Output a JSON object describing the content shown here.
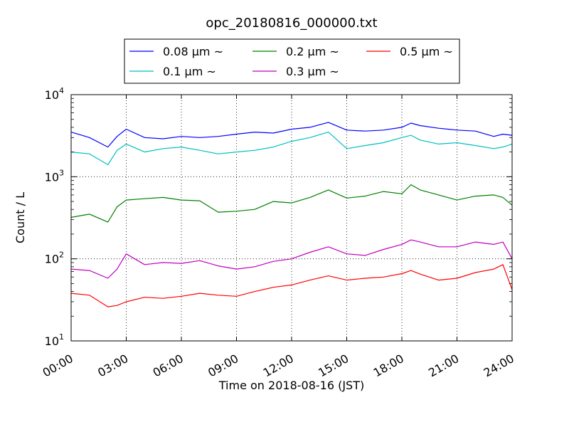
{
  "chart_data": {
    "type": "line",
    "title": "opc_20180816_000000.txt",
    "xlabel": "Time on 2018-08-16 (JST)",
    "ylabel": "Count / L",
    "y_scale": "log",
    "ylim": [
      10,
      10000
    ],
    "xlim": [
      "00:00",
      "24:00"
    ],
    "x_ticks": [
      "00:00",
      "03:00",
      "06:00",
      "09:00",
      "12:00",
      "15:00",
      "18:00",
      "21:00",
      "24:00"
    ],
    "y_ticks": [
      {
        "value": 10,
        "base": "10",
        "exp": "1"
      },
      {
        "value": 100,
        "base": "10",
        "exp": "2"
      },
      {
        "value": 1000,
        "base": "10",
        "exp": "3"
      },
      {
        "value": 10000,
        "base": "10",
        "exp": "4"
      }
    ],
    "grid": true,
    "legend_position": "top-center",
    "x": [
      "00:00",
      "01:00",
      "02:00",
      "02:30",
      "03:00",
      "04:00",
      "05:00",
      "06:00",
      "07:00",
      "08:00",
      "09:00",
      "10:00",
      "11:00",
      "12:00",
      "13:00",
      "14:00",
      "15:00",
      "16:00",
      "17:00",
      "18:00",
      "18:30",
      "19:00",
      "20:00",
      "21:00",
      "22:00",
      "23:00",
      "23:30",
      "24:00"
    ],
    "series": [
      {
        "name": "0.08 μm ~",
        "color": "#0000ff",
        "values": [
          3500,
          3000,
          2300,
          3100,
          3800,
          3000,
          2900,
          3100,
          3000,
          3100,
          3300,
          3500,
          3400,
          3800,
          4000,
          4600,
          3700,
          3600,
          3700,
          4000,
          4500,
          4200,
          3900,
          3700,
          3600,
          3100,
          3300,
          3200
        ]
      },
      {
        "name": "0.1 μm ~",
        "color": "#00bfbf",
        "values": [
          2000,
          1900,
          1400,
          2100,
          2500,
          2000,
          2200,
          2300,
          2100,
          1900,
          2000,
          2100,
          2300,
          2700,
          3000,
          3500,
          2200,
          2400,
          2600,
          3000,
          3200,
          2800,
          2500,
          2600,
          2400,
          2200,
          2300,
          2500
        ]
      },
      {
        "name": "0.2 μm ~",
        "color": "#008000",
        "values": [
          320,
          350,
          280,
          430,
          520,
          540,
          560,
          520,
          510,
          370,
          380,
          400,
          500,
          480,
          560,
          690,
          550,
          580,
          660,
          620,
          800,
          690,
          600,
          520,
          580,
          600,
          560,
          450
        ]
      },
      {
        "name": "0.3 μm ~",
        "color": "#bf00bf",
        "values": [
          75,
          72,
          58,
          75,
          115,
          85,
          90,
          88,
          95,
          82,
          75,
          80,
          93,
          100,
          120,
          140,
          115,
          110,
          130,
          150,
          170,
          160,
          140,
          140,
          160,
          150,
          160,
          100
        ]
      },
      {
        "name": "0.5 μm ~",
        "color": "#ff0000",
        "values": [
          38,
          36,
          26,
          27,
          30,
          34,
          33,
          35,
          38,
          36,
          35,
          40,
          45,
          48,
          55,
          62,
          55,
          58,
          60,
          66,
          72,
          65,
          55,
          58,
          68,
          75,
          85,
          42
        ]
      }
    ]
  }
}
